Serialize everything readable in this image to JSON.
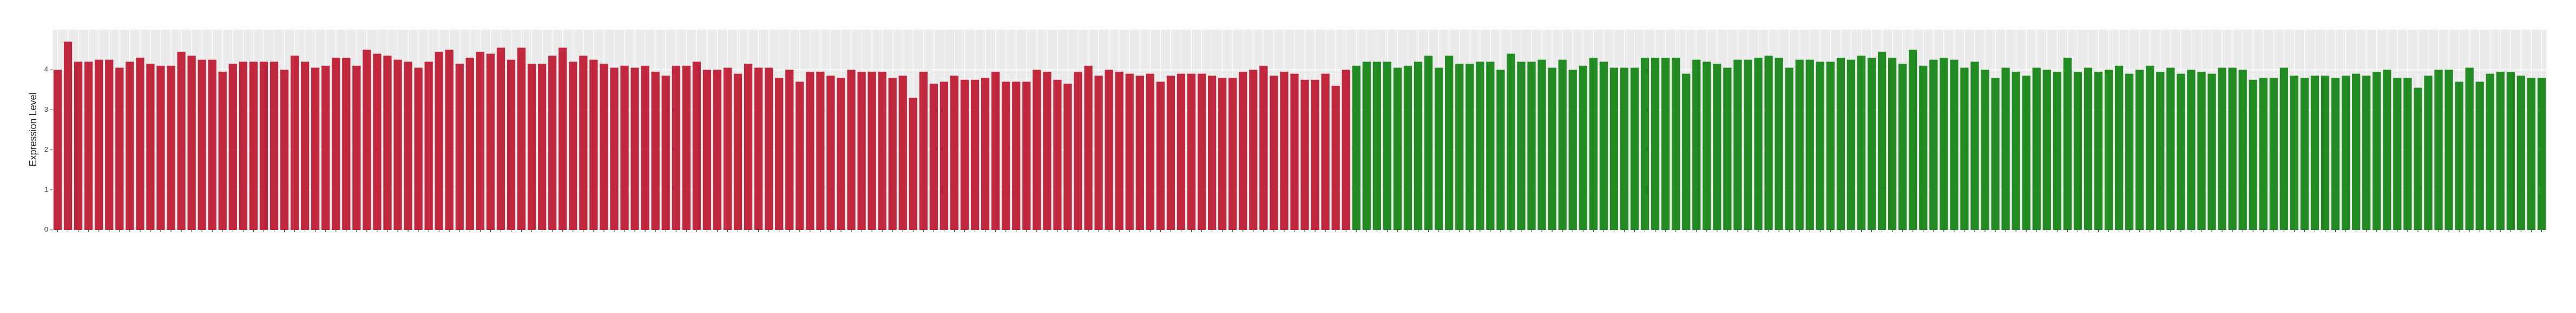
{
  "chart_data": {
    "type": "bar",
    "y_label": "Expression Level",
    "ylim": [
      0,
      5
    ],
    "yticks": [
      0,
      1,
      2,
      3,
      4
    ],
    "grid": true,
    "series": [
      {
        "color": "#c1283e",
        "values": [
          4.0,
          4.7,
          4.2,
          4.2,
          4.25,
          4.25,
          4.05,
          4.2,
          4.3,
          4.15,
          4.1,
          4.1,
          4.45,
          4.35,
          4.25,
          4.25,
          3.95,
          4.15,
          4.2,
          4.2,
          4.2,
          4.2,
          4.0,
          4.35,
          4.2,
          4.05,
          4.1,
          4.3,
          4.3,
          4.1,
          4.5,
          4.4,
          4.35,
          4.25,
          4.2,
          4.05,
          4.2,
          4.45,
          4.5,
          4.15,
          4.3,
          4.45,
          4.4,
          4.55,
          4.25,
          4.55,
          4.15,
          4.15,
          4.35,
          4.55,
          4.2,
          4.35,
          4.25,
          4.15,
          4.05,
          4.1,
          4.05,
          4.1,
          3.95,
          3.85,
          4.1,
          4.1,
          4.2,
          4.0,
          4.0,
          4.05,
          3.9,
          4.15,
          4.05,
          4.05,
          3.8,
          4.0,
          3.7,
          3.95,
          3.95,
          3.85,
          3.8,
          4.0,
          3.95,
          3.95,
          3.95,
          3.8,
          3.85,
          3.3,
          3.95,
          3.65,
          3.7,
          3.85,
          3.75,
          3.75,
          3.8,
          3.95,
          3.7,
          3.7,
          3.7,
          4.0,
          3.95,
          3.75,
          3.65,
          3.95,
          4.1,
          3.85,
          4.0,
          3.95,
          3.9,
          3.85,
          3.9,
          3.7,
          3.85,
          3.9,
          3.9,
          3.9,
          3.85,
          3.8,
          3.8,
          3.95,
          4.0,
          4.1,
          3.85,
          3.95,
          3.9,
          3.75,
          3.75,
          3.9,
          3.6,
          4.0
        ]
      },
      {
        "color": "#228b22",
        "values": [
          4.1,
          4.2,
          4.2,
          4.2,
          4.05,
          4.1,
          4.2,
          4.35,
          4.05,
          4.35,
          4.15,
          4.15,
          4.2,
          4.2,
          4.0,
          4.4,
          4.2,
          4.2,
          4.25,
          4.05,
          4.25,
          4.0,
          4.1,
          4.3,
          4.2,
          4.05,
          4.05,
          4.05,
          4.3,
          4.3,
          4.3,
          4.3,
          3.9,
          4.25,
          4.2,
          4.15,
          4.05,
          4.25,
          4.25,
          4.3,
          4.35,
          4.3,
          4.05,
          4.25,
          4.25,
          4.2,
          4.2,
          4.3,
          4.25,
          4.35,
          4.3,
          4.45,
          4.3,
          4.15,
          4.5,
          4.1,
          4.25,
          4.3,
          4.25,
          4.05,
          4.2,
          4.0,
          3.8,
          4.05,
          3.95,
          3.85,
          4.05,
          4.0,
          3.95,
          4.3,
          3.95,
          4.05,
          3.95,
          4.0,
          4.1,
          3.9,
          4.0,
          4.1,
          3.95,
          4.05,
          3.9,
          4.0,
          3.95,
          3.9,
          4.05,
          4.05,
          4.0,
          3.75,
          3.8,
          3.8,
          4.05,
          3.85,
          3.8,
          3.85,
          3.85,
          3.8,
          3.85,
          3.9,
          3.85,
          3.95,
          4.0,
          3.8,
          3.8,
          3.55,
          3.85,
          4.0,
          4.0,
          3.7,
          4.05,
          3.7,
          3.9,
          3.95,
          3.95,
          3.85,
          3.8,
          3.8
        ]
      }
    ]
  }
}
